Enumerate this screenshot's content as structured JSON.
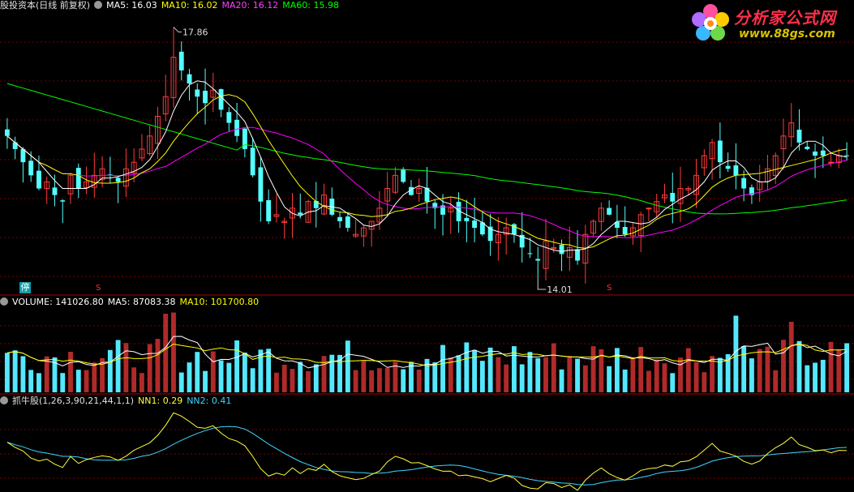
{
  "header": {
    "stock_label": "股投资本(日线 前复权)",
    "ma5": "MA5: 16.03",
    "ma10": "MA10: 16.02",
    "ma20": "MA20: 16.12",
    "ma60": "MA60: 15.98"
  },
  "volume_header": {
    "volume": "VOLUME: 141026.80",
    "ma5": "MA5: 87083.38",
    "ma10": "MA10: 101700.80"
  },
  "indicator_header": {
    "name": "抓牛股(1,26,3,90,21,44,1,1)",
    "nn1": "NN1: 0.29",
    "nn2": "NN2: 0.41"
  },
  "logo": {
    "title": "分析家公式网",
    "url": "www.88gs.com"
  },
  "markers": {
    "ting": "停",
    "s1": "S",
    "s2": "S"
  },
  "colors": {
    "up": "#ff3b3b",
    "down": "#54ffff",
    "ma5": "#ffffff",
    "ma10": "#ffff00",
    "ma20": "#ff00ff",
    "ma60": "#00ff00",
    "grid": "#7a0000",
    "nn1": "#ffff3c",
    "nn2": "#3cd8ff",
    "up_volume": "#b02a2a",
    "down_volume": "#54e8ff"
  },
  "chart_data": [
    {
      "type": "candlestick",
      "title": "股投资本(日线 前复权)",
      "y_high_label": "17.86",
      "y_low_label": "14.01",
      "ylim": [
        13.8,
        18.1
      ],
      "series": [
        {
          "name": "MA5",
          "value": 16.03
        },
        {
          "name": "MA10",
          "value": 16.02
        },
        {
          "name": "MA20",
          "value": 16.12
        },
        {
          "name": "MA60",
          "value": 15.98
        }
      ],
      "close": [
        16.2,
        16.0,
        15.8,
        15.6,
        15.4,
        15.5,
        15.3,
        15.2,
        15.6,
        15.4,
        15.5,
        15.6,
        15.7,
        15.6,
        15.5,
        15.7,
        15.8,
        16.0,
        16.2,
        16.5,
        16.8,
        17.4,
        17.2,
        17.0,
        16.8,
        16.7,
        16.9,
        16.6,
        16.4,
        16.2,
        16.0,
        15.6,
        15.2,
        14.9,
        15.0,
        14.9,
        15.1,
        15.0,
        15.2,
        15.1,
        15.3,
        15.0,
        14.9,
        14.8,
        14.7,
        14.8,
        14.9,
        15.1,
        15.4,
        15.6,
        15.5,
        15.3,
        15.4,
        15.2,
        15.1,
        15.0,
        15.1,
        14.9,
        14.9,
        14.8,
        14.7,
        14.6,
        14.7,
        14.8,
        14.7,
        14.5,
        14.4,
        14.3,
        14.6,
        14.5,
        14.4,
        14.5,
        14.3,
        14.7,
        14.9,
        15.1,
        15.0,
        14.8,
        14.7,
        14.8,
        15.0,
        15.1,
        15.2,
        15.3,
        15.2,
        15.4,
        15.4,
        15.6,
        15.9,
        16.1,
        15.8,
        15.7,
        15.6,
        15.4,
        15.3,
        15.5,
        15.7,
        15.9,
        16.2,
        16.4,
        16.1,
        16.0,
        15.9,
        15.9,
        15.8,
        15.9,
        15.9
      ]
    },
    {
      "type": "bar",
      "title": "VOLUME",
      "series": [
        {
          "name": "VOLUME",
          "value": 141026.8
        },
        {
          "name": "MA5",
          "value": 87083.38
        },
        {
          "name": "MA10",
          "value": 101700.8
        }
      ]
    },
    {
      "type": "line",
      "title": "抓牛股(1,26,3,90,21,44,1,1)",
      "series": [
        {
          "name": "NN1",
          "value": 0.29
        },
        {
          "name": "NN2",
          "value": 0.41
        }
      ]
    }
  ]
}
